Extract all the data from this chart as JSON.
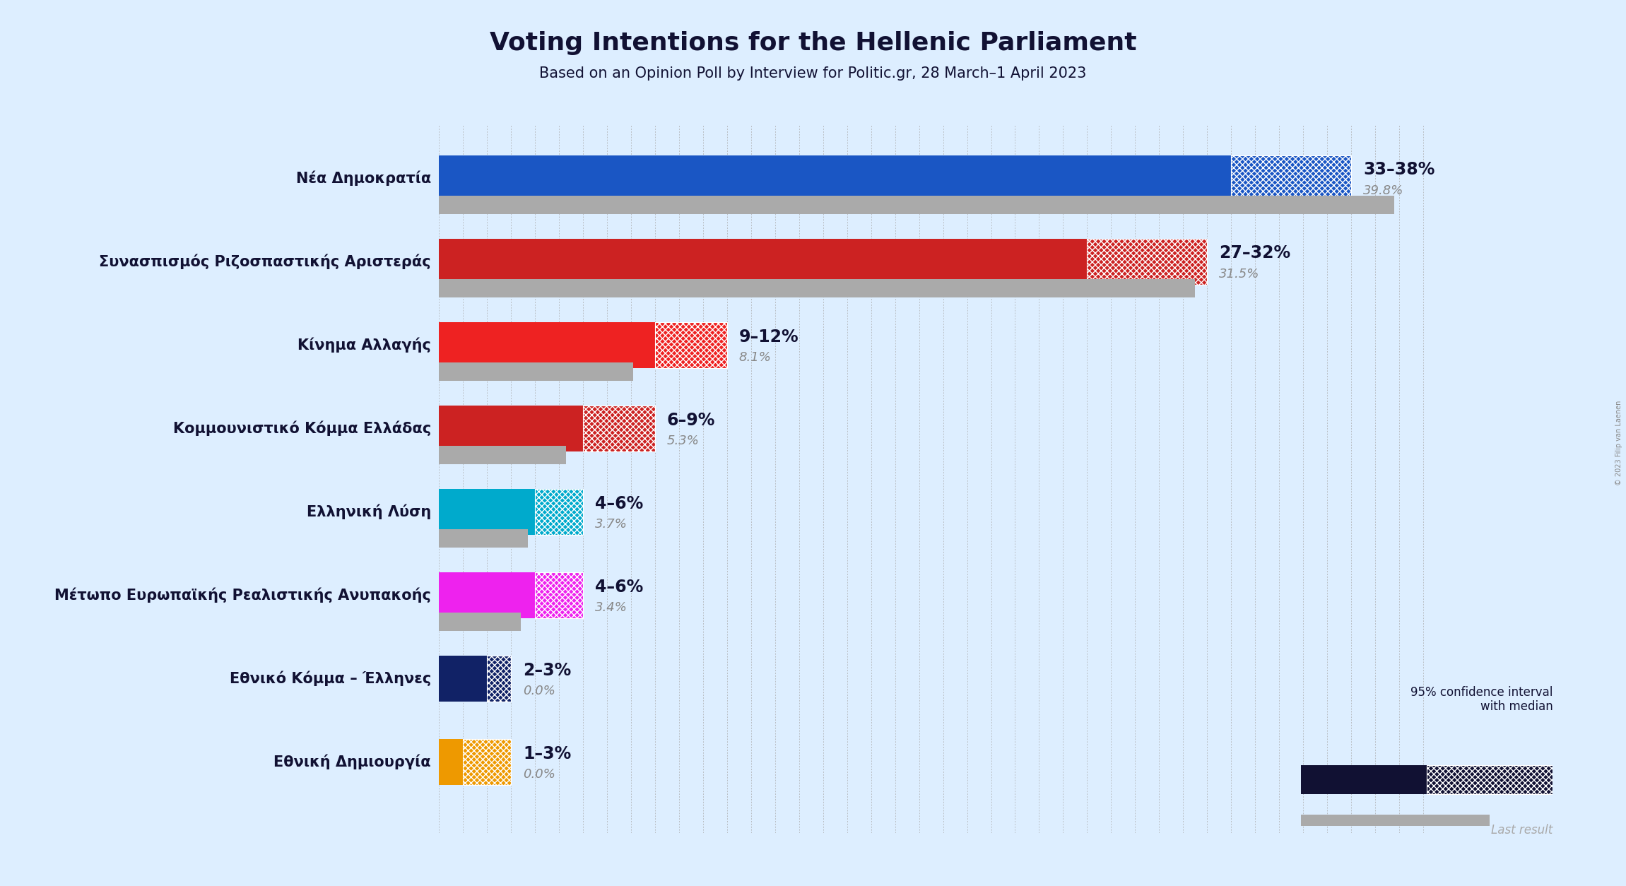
{
  "title": "Voting Intentions for the Hellenic Parliament",
  "subtitle": "Based on an Opinion Poll by Interview for Politic.gr, 28 March–1 April 2023",
  "background_color": "#ddeeff",
  "parties": [
    {
      "name": "Νέα Δημοκρατία",
      "low": 33,
      "high": 38,
      "last_result": 39.8,
      "color": "#1a56c4",
      "label": "33–38%",
      "last_label": "39.8%"
    },
    {
      "name": "Συνασπισμός Ριζοσπαστικής Αριστεράς",
      "low": 27,
      "high": 32,
      "last_result": 31.5,
      "color": "#cc2222",
      "label": "27–32%",
      "last_label": "31.5%"
    },
    {
      "name": "Κίνημα Αλλαγής",
      "low": 9,
      "high": 12,
      "last_result": 8.1,
      "color": "#ee2222",
      "label": "9–12%",
      "last_label": "8.1%"
    },
    {
      "name": "Κομμουνιστικό Κόμμα Ελλάδας",
      "low": 6,
      "high": 9,
      "last_result": 5.3,
      "color": "#cc2222",
      "label": "6–9%",
      "last_label": "5.3%"
    },
    {
      "name": "Ελληνική Λύση",
      "low": 4,
      "high": 6,
      "last_result": 3.7,
      "color": "#00aacc",
      "label": "4–6%",
      "last_label": "3.7%"
    },
    {
      "name": "Μέτωπο Ευρωπαϊκής Ρεαλιστικής Ανυπακοής",
      "low": 4,
      "high": 6,
      "last_result": 3.4,
      "color": "#ee22ee",
      "label": "4–6%",
      "last_label": "3.4%"
    },
    {
      "name": "Εθνικό Κόμμα – Έλληνες",
      "low": 2,
      "high": 3,
      "last_result": 0.0,
      "color": "#112266",
      "label": "2–3%",
      "last_label": "0.0%"
    },
    {
      "name": "Εθνική Δημιουργία",
      "low": 1,
      "high": 3,
      "last_result": 0.0,
      "color": "#ee9900",
      "label": "1–3%",
      "last_label": "0.0%"
    }
  ],
  "xlim": [
    0,
    42
  ],
  "title_fontsize": 26,
  "subtitle_fontsize": 15,
  "label_fontsize": 17,
  "last_label_fontsize": 13,
  "party_name_fontsize": 15,
  "copyright_text": "© 2023 Filip van Laenen",
  "legend_text_ci": "95% confidence interval\nwith median",
  "legend_text_last": "Last result",
  "grid_color": "#aaaaaa",
  "last_result_color": "#aaaaaa",
  "dark_navy": "#111133"
}
